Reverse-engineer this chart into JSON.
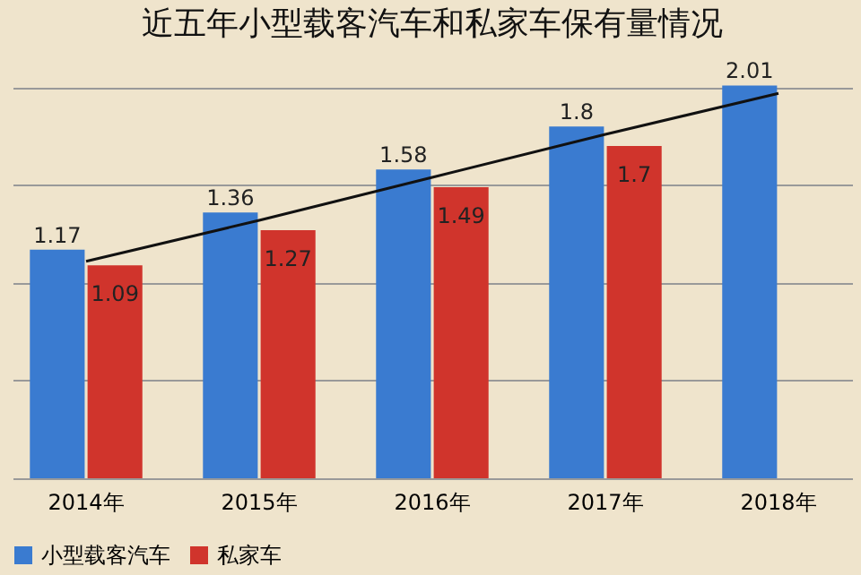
{
  "chart_data": {
    "type": "bar",
    "title": "近五年小型载客汽车和私家车保有量情况",
    "categories": [
      "2014年",
      "2015年",
      "2016年",
      "2017年",
      "2018年"
    ],
    "series": [
      {
        "name": "小型载客汽车",
        "color": "#3a7bd0",
        "values": [
          1.17,
          1.36,
          1.58,
          1.8,
          2.01
        ],
        "value_labels": [
          "1.17",
          "1.36",
          "1.58",
          "1.8",
          "2.01"
        ]
      },
      {
        "name": "私家车",
        "color": "#d0342c",
        "values": [
          1.09,
          1.27,
          1.49,
          1.7,
          null
        ],
        "value_labels": [
          "1.09",
          "1.27",
          "1.49",
          "1.7",
          null
        ]
      },
      {
        "type": "line",
        "color": "#111111",
        "values": [
          1.11,
          1.32,
          1.54,
          1.76,
          1.97
        ]
      }
    ],
    "yticks": [
      {
        "value": 0,
        "label": null
      },
      {
        "value": 0.5,
        "label": null
      },
      {
        "value": 1,
        "label": null
      },
      {
        "value": 1.5,
        "label": null
      },
      {
        "value": 2,
        "label": null
      }
    ],
    "grid": "y",
    "legend": "bottom"
  }
}
